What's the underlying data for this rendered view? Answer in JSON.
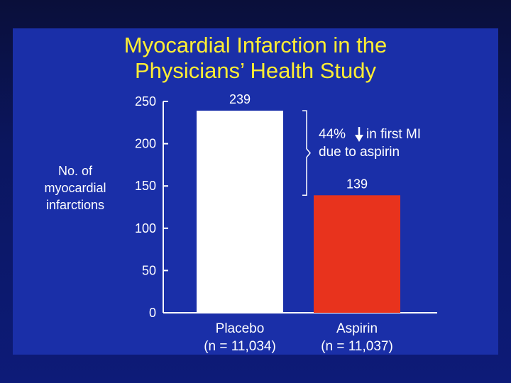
{
  "title_line1": "Myocardial Infarction in the",
  "title_line2": "Physicians’ Health Study",
  "colors": {
    "background": "#1a2fa8",
    "title": "#ffee33",
    "placebo_bar": "#ffffff",
    "aspirin_bar": "#e8331d",
    "text": "#ffffff"
  },
  "annotation": {
    "line1_prefix": "44%",
    "line1_suffix": "in first MI",
    "line2": "due to aspirin",
    "arrow_icon": "down-arrow-icon"
  },
  "chart_data": {
    "type": "bar",
    "title": "Myocardial Infarction in the Physicians’ Health Study",
    "ylabel": [
      "No. of",
      "myocardial",
      "infarctions"
    ],
    "ylim": [
      0,
      250
    ],
    "yticks": [
      0,
      50,
      100,
      150,
      200,
      250
    ],
    "categories": [
      {
        "name": "Placebo",
        "sub": "(n = 11,034)"
      },
      {
        "name": "Aspirin",
        "sub": "(n = 11,037)"
      }
    ],
    "values": [
      239,
      139
    ],
    "value_labels": [
      "239",
      "139"
    ],
    "grid": false
  }
}
